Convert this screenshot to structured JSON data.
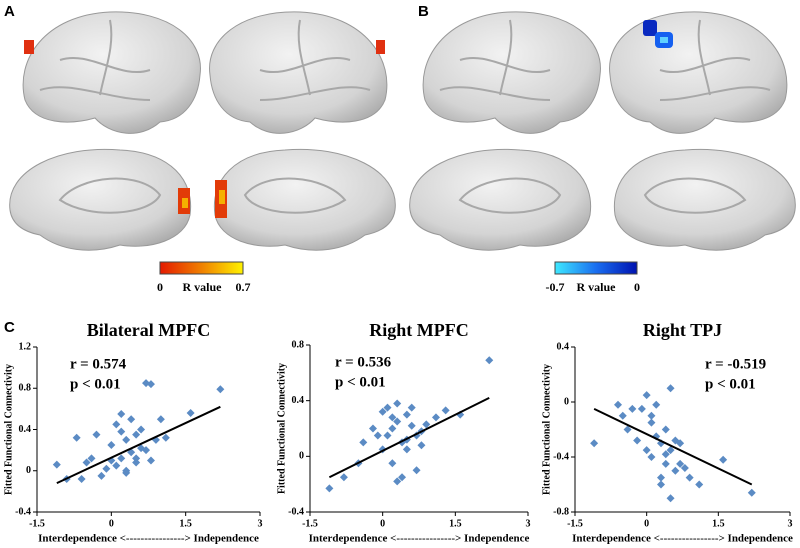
{
  "panels": {
    "a": "A",
    "b": "B",
    "c": "C"
  },
  "colorbars": [
    {
      "min_label": "0",
      "title": "R value",
      "max_label": "0.7"
    },
    {
      "min_label": "-0.7",
      "title": "R value",
      "max_label": "0"
    }
  ],
  "chart_data": [
    {
      "type": "scatter",
      "title": "Bilateral MPFC",
      "xlabel": "Interdependence <----------------> Independence",
      "ylabel": "Fitted Functional Connectivity",
      "annotations": [
        "r = 0.574",
        "p < 0.01"
      ],
      "color": "#5b8bc4",
      "x": [
        -1.1,
        -0.7,
        -0.6,
        -0.5,
        -0.4,
        -0.3,
        -0.2,
        -0.1,
        0,
        0,
        0.1,
        0.1,
        0.2,
        0.2,
        0.3,
        0.3,
        0.4,
        0.4,
        0.5,
        0.5,
        0.6,
        0.6,
        0.7,
        0.8,
        0.9,
        1.0,
        1.1,
        1.6,
        2.2,
        0.7,
        0.8,
        -0.9,
        0.5,
        0.3,
        0.2
      ],
      "y": [
        0.06,
        0.32,
        -0.08,
        0.08,
        0.12,
        0.35,
        -0.05,
        0.02,
        0.25,
        0.1,
        0.05,
        0.45,
        0.12,
        0.55,
        0.3,
        0.0,
        0.18,
        0.5,
        0.35,
        0.08,
        0.22,
        0.4,
        0.85,
        0.84,
        0.3,
        0.5,
        0.32,
        0.56,
        0.79,
        0.2,
        0.1,
        -0.08,
        0.12,
        -0.02,
        0.38
      ],
      "fit": {
        "x": [
          -1.1,
          2.2
        ],
        "y": [
          -0.12,
          0.62
        ]
      },
      "xlim": [
        -1.5,
        3
      ],
      "xticks": [
        -1.5,
        0,
        1.5,
        3
      ],
      "ylim": [
        -0.4,
        1.2
      ],
      "yticks": [
        -0.4,
        0,
        0.4,
        0.8,
        1.2
      ]
    },
    {
      "type": "scatter",
      "title": "Right MPFC",
      "xlabel": "Interdependence <----------------> Independence",
      "ylabel": "Fitted Functional Connectivity",
      "annotations": [
        "r = 0.536",
        "p < 0.01"
      ],
      "color": "#5b8bc4",
      "x": [
        -1.1,
        -0.8,
        -0.5,
        -0.4,
        -0.2,
        0,
        0,
        0.1,
        0.1,
        0.2,
        0.2,
        0.3,
        0.3,
        0.4,
        0.4,
        0.5,
        0.5,
        0.6,
        0.6,
        0.7,
        0.7,
        0.8,
        0.9,
        1.1,
        1.3,
        1.6,
        2.2,
        -0.1,
        0.3,
        0.5,
        0.8,
        0.2
      ],
      "y": [
        -0.23,
        -0.15,
        -0.05,
        0.1,
        0.2,
        0.32,
        0.05,
        0.35,
        0.15,
        0.2,
        -0.05,
        0.25,
        0.38,
        0.1,
        -0.15,
        0.3,
        0.05,
        0.22,
        0.35,
        0.15,
        -0.1,
        0.18,
        0.23,
        0.28,
        0.33,
        0.3,
        0.69,
        0.15,
        -0.18,
        0.12,
        0.08,
        0.28
      ],
      "fit": {
        "x": [
          -1.1,
          2.2
        ],
        "y": [
          -0.15,
          0.42
        ]
      },
      "xlim": [
        -1.5,
        3
      ],
      "xticks": [
        -1.5,
        0,
        1.5,
        3
      ],
      "ylim": [
        -0.4,
        0.8
      ],
      "yticks": [
        -0.4,
        0,
        0.4,
        0.8
      ]
    },
    {
      "type": "scatter",
      "title": "Right TPJ",
      "xlabel": "Interdependence <----------------> Independence",
      "ylabel": "Fitted Functional Connectivity",
      "annotations": [
        "r = -0.519",
        "p < 0.01"
      ],
      "color": "#5b8bc4",
      "x": [
        -1.1,
        -0.6,
        -0.5,
        -0.4,
        -0.2,
        -0.1,
        0,
        0,
        0.1,
        0.1,
        0.2,
        0.2,
        0.3,
        0.3,
        0.4,
        0.4,
        0.5,
        0.5,
        0.6,
        0.6,
        0.7,
        0.7,
        0.8,
        0.9,
        1.1,
        1.6,
        2.2,
        0.5,
        0.3,
        -0.3,
        0.1,
        0.4
      ],
      "y": [
        -0.3,
        -0.02,
        -0.1,
        -0.2,
        -0.28,
        -0.05,
        0.05,
        -0.35,
        -0.15,
        -0.4,
        -0.02,
        -0.25,
        -0.3,
        -0.55,
        -0.2,
        -0.45,
        0.1,
        -0.35,
        -0.28,
        -0.5,
        -0.3,
        -0.45,
        -0.48,
        -0.55,
        -0.6,
        -0.42,
        -0.66,
        -0.7,
        -0.6,
        -0.05,
        -0.1,
        -0.38
      ],
      "fit": {
        "x": [
          -1.1,
          2.2
        ],
        "y": [
          -0.05,
          -0.6
        ]
      },
      "xlim": [
        -1.5,
        3
      ],
      "xticks": [
        -1.5,
        0,
        1.5,
        3
      ],
      "ylim": [
        -0.8,
        0.4
      ],
      "yticks": [
        -0.8,
        -0.4,
        0,
        0.4
      ]
    }
  ]
}
